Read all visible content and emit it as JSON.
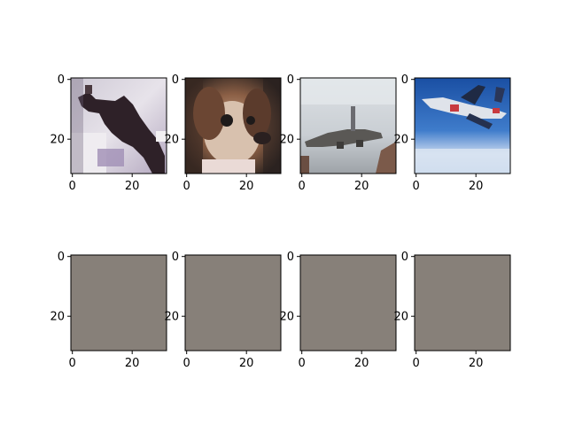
{
  "figure": {
    "background": "#ffffff"
  },
  "chart_data": {
    "type": "image_grid",
    "rows": 2,
    "cols": 4,
    "image_size": [
      32,
      32
    ],
    "xticks": [
      0,
      20
    ],
    "yticks": [
      0,
      20
    ],
    "xtick_labels": [
      "0",
      "20"
    ],
    "ytick_labels": [
      "0",
      "20"
    ],
    "panels": [
      {
        "row": 0,
        "col": 0,
        "content": "dog-silhouette-photo",
        "palette": [
          "#d9d5df",
          "#3a2a30",
          "#b8a9c2",
          "#f2f0f2"
        ]
      },
      {
        "row": 0,
        "col": 1,
        "content": "puppy-face-photo",
        "palette": [
          "#6a4c3a",
          "#c8a58a",
          "#2a211e",
          "#efe1d8"
        ]
      },
      {
        "row": 0,
        "col": 2,
        "content": "airliner-cloudy-sky-photo",
        "palette": [
          "#d8dde1",
          "#5b5a58",
          "#a6acb2",
          "#7a5a4a"
        ]
      },
      {
        "row": 0,
        "col": 3,
        "content": "airliner-blue-sky-photo",
        "palette": [
          "#2a63b8",
          "#dfe7ef",
          "#c83a3f",
          "#8fb3dd"
        ]
      },
      {
        "row": 1,
        "col": 0,
        "content": "uniform-gray",
        "palette": [
          "#878079"
        ]
      },
      {
        "row": 1,
        "col": 1,
        "content": "uniform-gray",
        "palette": [
          "#878079"
        ]
      },
      {
        "row": 1,
        "col": 2,
        "content": "uniform-gray",
        "palette": [
          "#878079"
        ]
      },
      {
        "row": 1,
        "col": 3,
        "content": "uniform-gray",
        "palette": [
          "#878079"
        ]
      }
    ]
  }
}
